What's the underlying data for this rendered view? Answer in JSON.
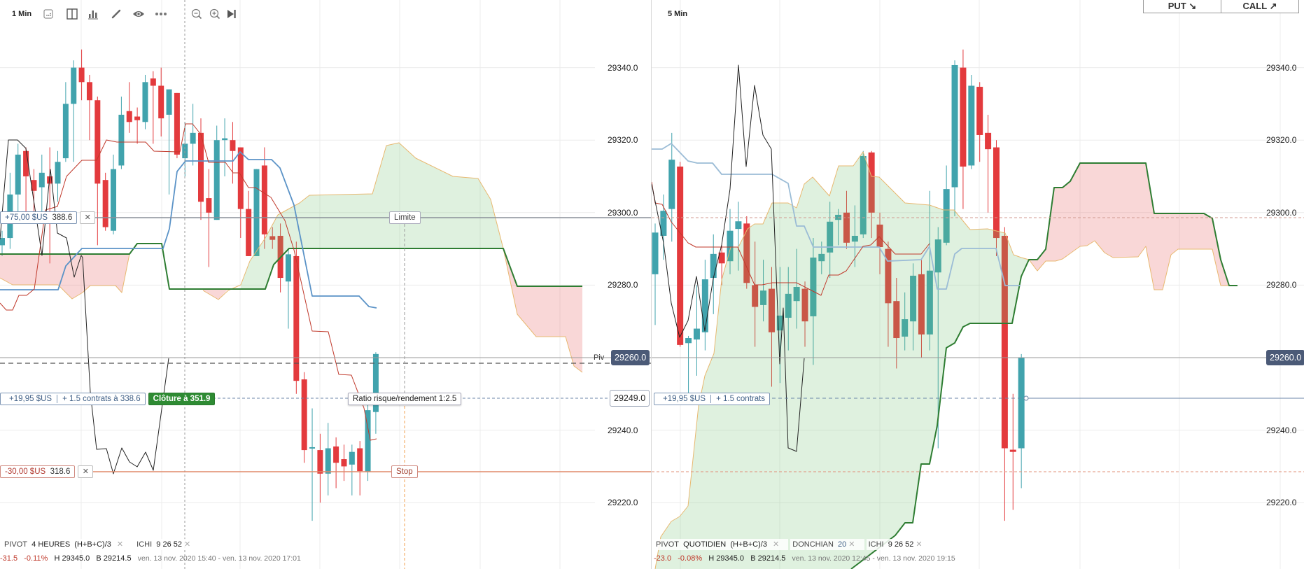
{
  "colors": {
    "bull": "#41a3ad",
    "bear": "#e33a3d",
    "cloud_bull": "#d9efd9",
    "cloud_bear": "#f8d6d6",
    "kijun": "#5b93c7",
    "tenkan": "#c0392b",
    "chikou": "#222222",
    "senkou_b": "#2e7d32",
    "senkou_a": "#e8b870",
    "pivot_badge": "#4b5a77",
    "close_btn": "#2e8b33"
  },
  "left": {
    "timeframe": "1 Min",
    "toolbar_icons": [
      "grid-layout-icon",
      "split-view-icon",
      "bar-chart-icon",
      "pencil-icon",
      "eye-icon",
      "more-icon",
      "zoom-out-icon",
      "zoom-in-icon",
      "skip-to-end-icon"
    ],
    "axis_ticks": [
      "29340.0",
      "29320.0",
      "29300.0",
      "29280.0",
      "29260.0",
      "29240.0",
      "29220.0"
    ],
    "pivot_label": "Piv",
    "pivot_value": "29260.0",
    "entry_value": "29249.0",
    "take_profit": {
      "pnl": "+75,00 $US",
      "price": "388.6",
      "close": "✕",
      "tag": "Limite"
    },
    "position": {
      "pnl": "+19,95 $US",
      "detail": "+ 1.5 contrats à 338.6",
      "close_label": "Clôture à 351.9",
      "ratio": "Ratio risque/rendement 1:2.5"
    },
    "stop_loss": {
      "pnl": "-30,00 $US",
      "price": "318.6",
      "close": "✕",
      "tag": "Stop"
    },
    "indicators": {
      "pivot": "PIVOT",
      "pivot_period": "4 HEURES",
      "pivot_formula": "(H+B+C)/3",
      "ichi": "ICHI",
      "ichi_params": "9  26  52",
      "remove": "✕"
    },
    "stats": {
      "change": "-31.5",
      "change_pct": "-0.11%",
      "high": "H 29345.0",
      "low": "B 29214.5",
      "range": "ven. 13 nov. 2020 15:40 - ven. 13 nov. 2020 17:01"
    },
    "candles": [
      [
        29291,
        29295,
        29288,
        29293
      ],
      [
        29293,
        29311,
        29290,
        29305
      ],
      [
        29305,
        29319,
        29300,
        29316
      ],
      [
        29317,
        29318,
        29300,
        29310
      ],
      [
        29309,
        29312,
        29297,
        29306
      ],
      [
        29307,
        29316,
        29299,
        29311
      ],
      [
        29310,
        29318,
        29286,
        29308
      ],
      [
        29308,
        29317,
        29303,
        29314
      ],
      [
        29315,
        29336,
        29314,
        29330
      ],
      [
        29330,
        29342,
        29314,
        29340
      ],
      [
        29340,
        29345,
        29331,
        29336
      ],
      [
        29336,
        29338,
        29320,
        29331
      ],
      [
        29331,
        29332,
        29291,
        29308
      ],
      [
        29309,
        29311,
        29295,
        29296
      ],
      [
        29295,
        29316,
        29294,
        29312
      ],
      [
        29313,
        29332,
        29312,
        29327
      ],
      [
        29328,
        29336,
        29322,
        29325
      ],
      [
        29326.5,
        29329,
        29319,
        29325.5
      ],
      [
        29325,
        29338,
        29323,
        29336
      ],
      [
        29337,
        29339,
        29319,
        29335
      ],
      [
        29335,
        29340,
        29321,
        29326
      ],
      [
        29327,
        29334,
        29305,
        29334
      ],
      [
        29333,
        29333,
        29315,
        29316
      ],
      [
        29315,
        29325,
        29310,
        29319
      ],
      [
        29319,
        29330,
        29313,
        29322
      ],
      [
        29322,
        29326,
        29298,
        29303
      ],
      [
        29304,
        29312,
        29285,
        29300
      ],
      [
        29298,
        29324,
        29298,
        29320
      ],
      [
        29320,
        29326,
        29310,
        29320.5
      ],
      [
        29320,
        29325,
        29308,
        29317
      ],
      [
        29318,
        29318,
        29293,
        29301
      ],
      [
        29301,
        29306,
        29288,
        29288
      ],
      [
        29288,
        29312,
        29288,
        29312
      ],
      [
        29313,
        29318,
        29290,
        29294
      ],
      [
        29293.5,
        29296,
        29290,
        29292.5
      ],
      [
        29293.6,
        29297,
        29278,
        29282
      ],
      [
        29281,
        29290,
        29268,
        29288.5
      ],
      [
        29288,
        29292,
        29250,
        29253.6
      ],
      [
        29254,
        29256,
        29231,
        29234.5
      ],
      [
        29235,
        29246,
        29215,
        29235.3
      ],
      [
        29234.5,
        29239,
        29220,
        29228
      ],
      [
        29228,
        29242,
        29222,
        29235
      ],
      [
        29235.5,
        29238,
        29224,
        29231
      ],
      [
        29232,
        29236,
        29226,
        29230
      ],
      [
        29230.5,
        29236,
        29222,
        29234
      ],
      [
        29235,
        29237,
        29222,
        29228.7
      ],
      [
        29228.5,
        29247,
        29226,
        29245.5
      ],
      [
        29245,
        29261.5,
        29239,
        29261
      ]
    ]
  },
  "right": {
    "timeframe": "5 Min",
    "put_label": "PUT ↘",
    "call_label": "CALL ↗",
    "axis_ticks": [
      "29340.0",
      "29320.0",
      "29300.0",
      "29280.0",
      "29260.0",
      "29240.0",
      "29220.0"
    ],
    "pivot_value": "29260.0",
    "position": {
      "pnl": "+19,95 $US",
      "detail": "+ 1.5 contrats"
    },
    "indicators": {
      "pivot": "PIVOT",
      "pivot_period": "QUOTIDIEN",
      "pivot_formula": "(H+B+C)/3",
      "donchian": "DONCHIAN",
      "donchian_param": "20",
      "ichi": "ICHI",
      "ichi_params": "9  26  52",
      "remove": "✕"
    },
    "stats": {
      "change": "-23.0",
      "change_pct": "-0.08%",
      "high": "H 29345.0",
      "low": "B 29214.5",
      "range": "ven. 13 nov. 2020 12:45 - ven. 13 nov. 2020 19:15"
    },
    "candles": [
      [
        29283,
        29297,
        29269,
        29294.5
      ],
      [
        29293.6,
        29305,
        29287,
        29300.5
      ],
      [
        29301,
        29322,
        29292,
        29314.6
      ],
      [
        29312.7,
        29314,
        29263,
        29263.5
      ],
      [
        29264,
        29266,
        29250,
        29265.4
      ],
      [
        29265,
        29280,
        29255,
        29268
      ],
      [
        29267,
        29287,
        29262,
        29281.6
      ],
      [
        29282,
        29294,
        29272,
        29288.6
      ],
      [
        29289,
        29291,
        29280,
        29286
      ],
      [
        29286.6,
        29301,
        29283,
        29295
      ],
      [
        29295.5,
        29303,
        29284,
        29297.6
      ],
      [
        29297,
        29299,
        29279,
        29280.6
      ],
      [
        29280,
        29292,
        29263,
        29274
      ],
      [
        29274.5,
        29287,
        29270,
        29278.5
      ],
      [
        29279,
        29285,
        29252,
        29267
      ],
      [
        29267.5,
        29285,
        29253,
        29271.6
      ],
      [
        29271,
        29285,
        29262,
        29277.6
      ],
      [
        29275.6,
        29290,
        29268,
        29279.5
      ],
      [
        29279,
        29281,
        29263,
        29270
      ],
      [
        29271.4,
        29293,
        29258,
        29287.6
      ],
      [
        29286.6,
        29292,
        29283,
        29288.6
      ],
      [
        29289,
        29303,
        29282,
        29297.5
      ],
      [
        29298,
        29301,
        29291,
        29299.4
      ],
      [
        29300,
        29306,
        29290,
        29291.7
      ],
      [
        29292,
        29302,
        29285,
        29293.6
      ],
      [
        29294,
        29317,
        29293,
        29315.6
      ],
      [
        29316.6,
        29317,
        29293,
        29300
      ],
      [
        29296.7,
        29300,
        29283,
        29290.5
      ],
      [
        29290,
        29292,
        29263,
        29275
      ],
      [
        29275.6,
        29282,
        29257,
        29265.4
      ],
      [
        29265.8,
        29278,
        29262,
        29270.6
      ],
      [
        29270,
        29286,
        29262,
        29282.6
      ],
      [
        29283,
        29287,
        29260,
        29266.4
      ],
      [
        29266.4,
        29306,
        29262,
        29284
      ],
      [
        29283.5,
        29296,
        29235,
        29292.6
      ],
      [
        29291.7,
        29313,
        29291,
        29306.5
      ],
      [
        29307,
        29342,
        29299,
        29340.7
      ],
      [
        29340,
        29345,
        29301,
        29312.7
      ],
      [
        29313,
        29338,
        29312,
        29335
      ],
      [
        29334.7,
        29336,
        29314,
        29321.4
      ],
      [
        29322,
        29327,
        29300,
        29317.5
      ],
      [
        29318,
        29320,
        29288,
        29293
      ],
      [
        29293.6,
        29296,
        29215,
        29235
      ],
      [
        29234.6,
        29250,
        29218,
        29234
      ],
      [
        29235,
        29261,
        29224,
        29260
      ]
    ]
  }
}
